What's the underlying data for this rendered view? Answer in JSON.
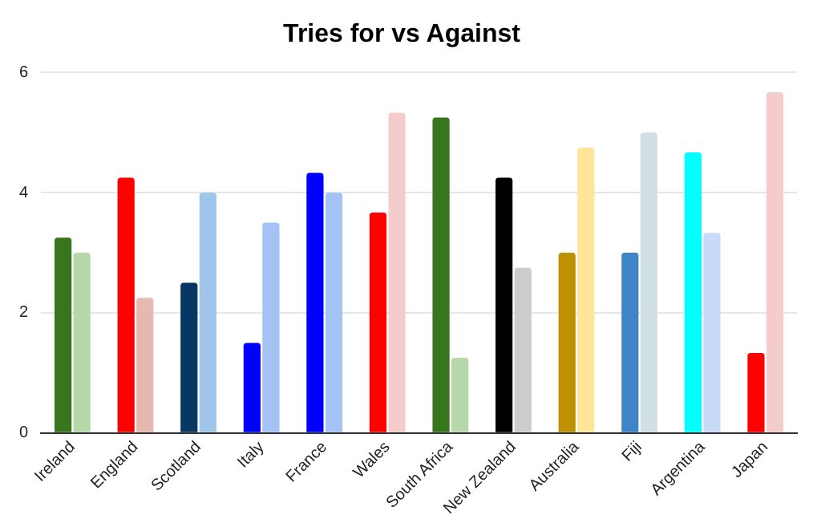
{
  "chart_data": {
    "type": "bar",
    "title": "Tries for vs Against",
    "categories": [
      "Ireland",
      "England",
      "Scotland",
      "Italy",
      "France",
      "Wales",
      "South Africa",
      "New Zealand",
      "Australia",
      "Fiji",
      "Argentina",
      "Japan"
    ],
    "series": [
      {
        "colors": [
          "#38761d",
          "#ff0000",
          "#073763",
          "#0000ff",
          "#0000ff",
          "#ff0000",
          "#38761d",
          "#000000",
          "#bf9000",
          "#3d85c6",
          "#00ffff",
          "#ff0000"
        ],
        "values": [
          3.25,
          4.25,
          2.5,
          1.5,
          4.33,
          3.67,
          5.25,
          4.25,
          3.0,
          3.0,
          4.67,
          1.33
        ]
      },
      {
        "colors": [
          "#b6d7a8",
          "#e6b8af",
          "#9fc5e8",
          "#a4c2f4",
          "#a4c2f4",
          "#f4cccc",
          "#b6d7a8",
          "#cccccc",
          "#ffe599",
          "#d0e0e3",
          "#c9daf8",
          "#f4cccc"
        ],
        "values": [
          3.0,
          2.25,
          4.0,
          3.5,
          4.0,
          5.33,
          1.25,
          2.75,
          4.75,
          5.0,
          3.33,
          5.67
        ]
      }
    ],
    "ylim": [
      0,
      6
    ],
    "yticks": [
      0,
      2,
      4,
      6
    ],
    "grid": "y",
    "legend": false
  }
}
